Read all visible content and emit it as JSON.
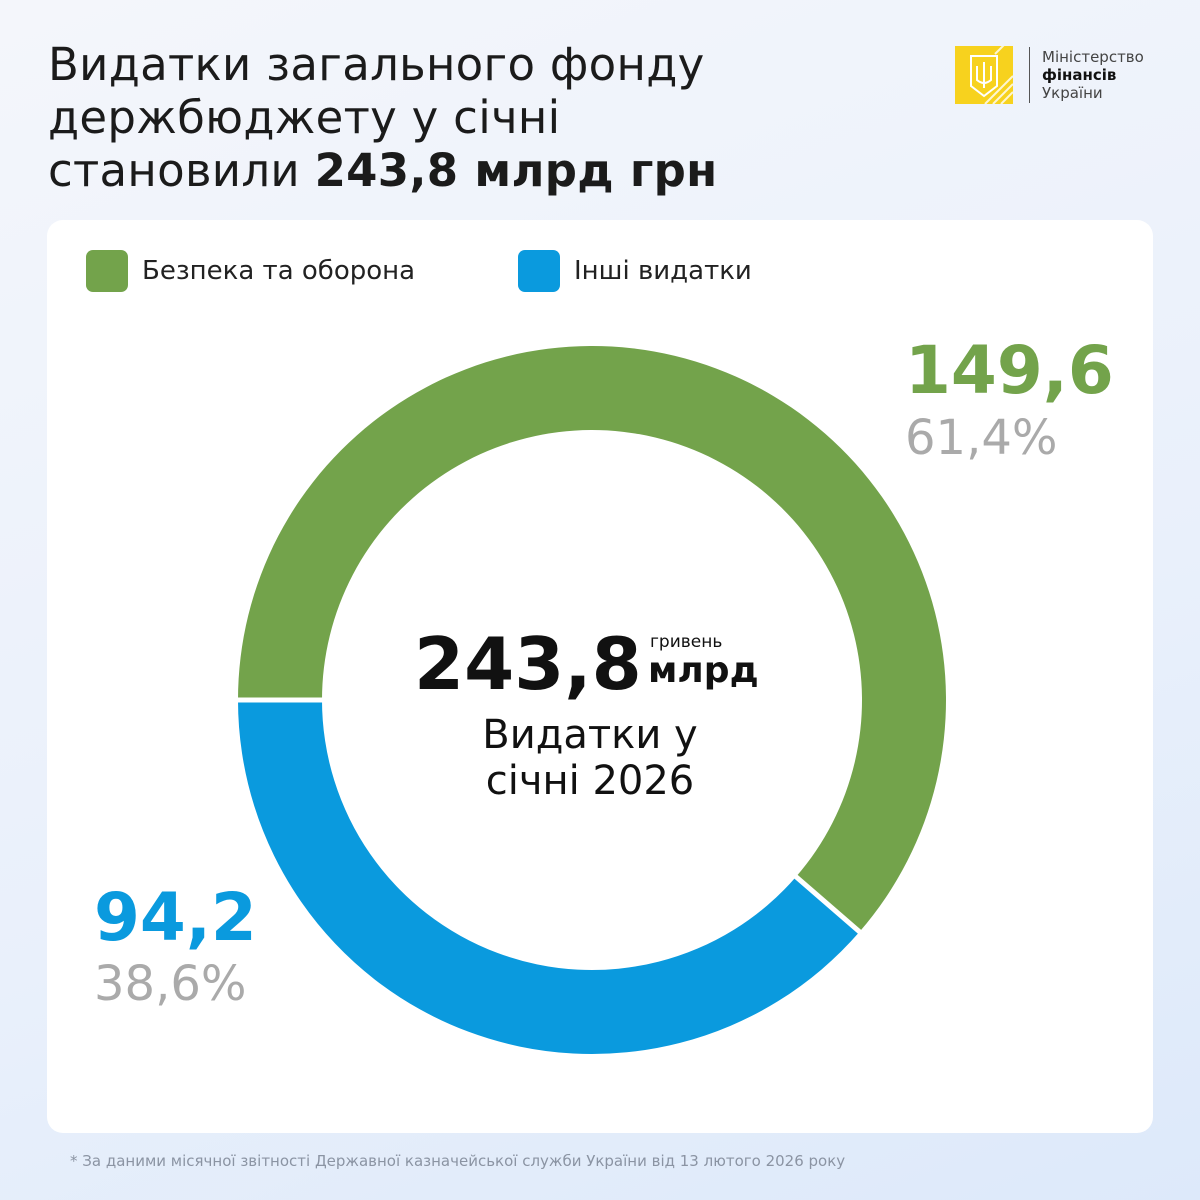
{
  "header": {
    "title_line1": "Видатки загального фонду",
    "title_line2": "держбюджету у січні",
    "title_line3_prefix": "становили ",
    "title_line3_bold": "243,8 млрд грн"
  },
  "logo": {
    "line1": "Міністерство",
    "line2": "фінансів",
    "line3": "України"
  },
  "chart_data": {
    "type": "pie",
    "donut": true,
    "categories": [
      "Безпека та оборона",
      "Інші видатки"
    ],
    "values": [
      149.6,
      94.2
    ],
    "percent_labels": [
      "61,4%",
      "38,6%"
    ],
    "value_labels": [
      "149,6",
      "94,2"
    ],
    "colors": [
      "#73a34b",
      "#0a9ade"
    ],
    "legend": "top-left",
    "center": {
      "total": "243,8",
      "unit_small": "гривень",
      "unit_big": "млрд",
      "label_line1": "Видатки у",
      "label_line2": "січні 2026"
    }
  },
  "footnote": "* За даними місячної звітності Державної казначейської служби України від 13 лютого 2026 року"
}
